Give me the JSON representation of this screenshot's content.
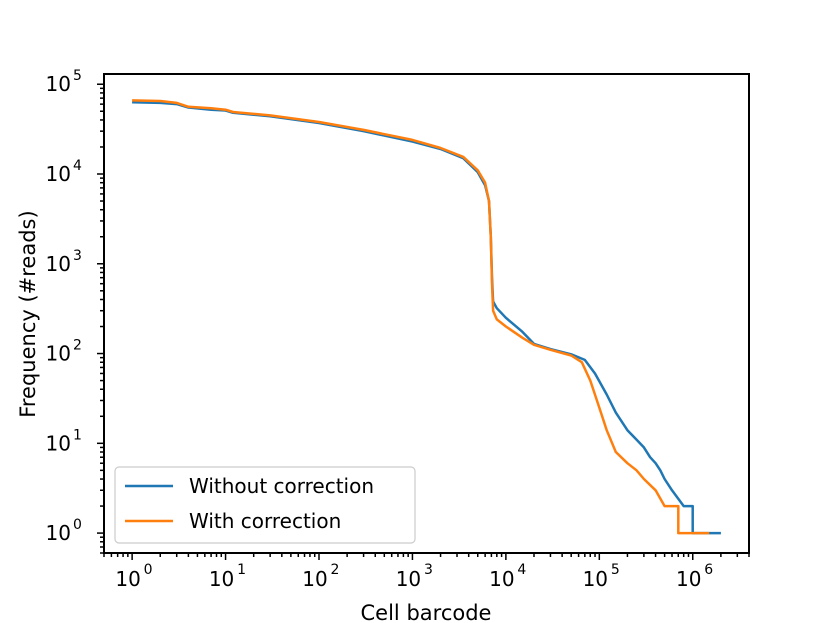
{
  "chart_data": {
    "type": "line",
    "title": "",
    "xlabel": "Cell barcode",
    "ylabel": "Frequency (#reads)",
    "xscale": "log",
    "yscale": "log",
    "xlim": [
      0.5,
      4000000
    ],
    "ylim": [
      0.6,
      130000
    ],
    "grid": false,
    "legend_position": "bottom-left",
    "x_ticks": [
      {
        "base": "10",
        "exp": "0",
        "value": 1
      },
      {
        "base": "10",
        "exp": "1",
        "value": 10
      },
      {
        "base": "10",
        "exp": "2",
        "value": 100
      },
      {
        "base": "10",
        "exp": "3",
        "value": 1000
      },
      {
        "base": "10",
        "exp": "4",
        "value": 10000
      },
      {
        "base": "10",
        "exp": "5",
        "value": 100000
      },
      {
        "base": "10",
        "exp": "6",
        "value": 1000000
      }
    ],
    "y_ticks": [
      {
        "base": "10",
        "exp": "0",
        "value": 1
      },
      {
        "base": "10",
        "exp": "1",
        "value": 10
      },
      {
        "base": "10",
        "exp": "2",
        "value": 100
      },
      {
        "base": "10",
        "exp": "3",
        "value": 1000
      },
      {
        "base": "10",
        "exp": "4",
        "value": 10000
      },
      {
        "base": "10",
        "exp": "5",
        "value": 100000
      }
    ],
    "series": [
      {
        "name": "Without correction",
        "color": "#1f77b4",
        "points": [
          [
            1,
            63000
          ],
          [
            2,
            62000
          ],
          [
            3,
            60000
          ],
          [
            4,
            55000
          ],
          [
            7,
            52000
          ],
          [
            10,
            51000
          ],
          [
            12,
            48000
          ],
          [
            30,
            44000
          ],
          [
            100,
            37000
          ],
          [
            300,
            30000
          ],
          [
            1000,
            23000
          ],
          [
            2000,
            19000
          ],
          [
            3500,
            15000
          ],
          [
            5000,
            10500
          ],
          [
            6000,
            7500
          ],
          [
            6600,
            5000
          ],
          [
            6900,
            2000
          ],
          [
            7100,
            700
          ],
          [
            7300,
            380
          ],
          [
            8000,
            320
          ],
          [
            10000,
            250
          ],
          [
            15000,
            175
          ],
          [
            20000,
            128
          ],
          [
            30000,
            112
          ],
          [
            50000,
            98
          ],
          [
            70000,
            85
          ],
          [
            90000,
            60
          ],
          [
            120000,
            35
          ],
          [
            150000,
            22
          ],
          [
            200000,
            14
          ],
          [
            250000,
            11
          ],
          [
            300000,
            9
          ],
          [
            350000,
            7
          ],
          [
            400000,
            6
          ],
          [
            450000,
            5
          ],
          [
            500000,
            4
          ],
          [
            600000,
            3
          ],
          [
            800000,
            2
          ],
          [
            1000000,
            2
          ],
          [
            1000000,
            1
          ],
          [
            2000000,
            1
          ]
        ]
      },
      {
        "name": "With correction",
        "color": "#ff7f0e",
        "points": [
          [
            1,
            66000
          ],
          [
            2,
            65000
          ],
          [
            3,
            62000
          ],
          [
            4,
            56000
          ],
          [
            7,
            54000
          ],
          [
            10,
            52000
          ],
          [
            12,
            49000
          ],
          [
            30,
            45000
          ],
          [
            100,
            38000
          ],
          [
            300,
            31000
          ],
          [
            1000,
            24000
          ],
          [
            2000,
            19500
          ],
          [
            3500,
            15500
          ],
          [
            5000,
            11000
          ],
          [
            6000,
            8000
          ],
          [
            6600,
            5000
          ],
          [
            6900,
            2000
          ],
          [
            7100,
            600
          ],
          [
            7300,
            300
          ],
          [
            8000,
            240
          ],
          [
            10000,
            200
          ],
          [
            15000,
            150
          ],
          [
            20000,
            125
          ],
          [
            30000,
            110
          ],
          [
            50000,
            95
          ],
          [
            65000,
            80
          ],
          [
            80000,
            50
          ],
          [
            100000,
            25
          ],
          [
            120000,
            14
          ],
          [
            150000,
            8
          ],
          [
            200000,
            6
          ],
          [
            250000,
            5
          ],
          [
            300000,
            4
          ],
          [
            400000,
            3
          ],
          [
            500000,
            2
          ],
          [
            700000,
            2
          ],
          [
            700000,
            1
          ],
          [
            1500000,
            1
          ]
        ]
      }
    ]
  }
}
